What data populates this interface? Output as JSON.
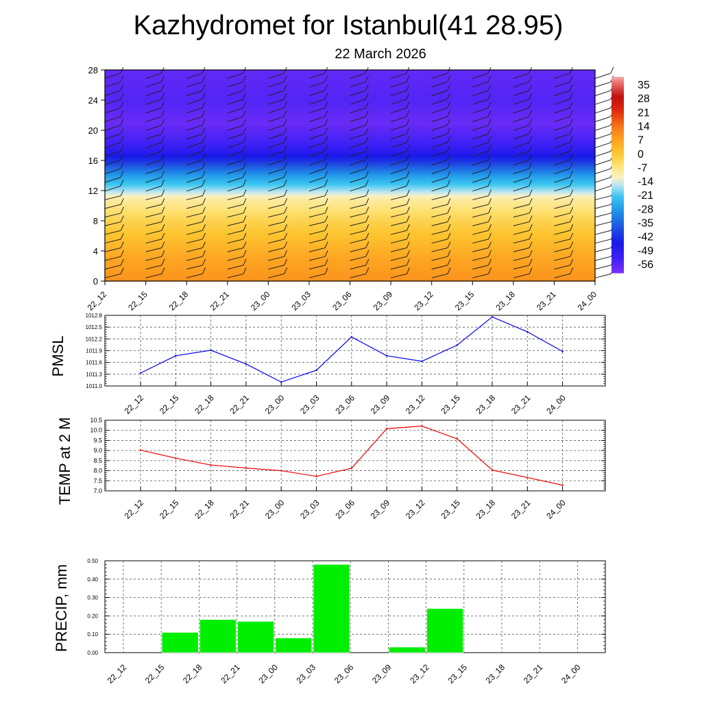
{
  "title": "Kazhydromet for Istanbul(41 28.95)",
  "subtitle": "22 March 2026",
  "colors": {
    "pmsl_line": "#0000ee",
    "temp_line": "#ee0000",
    "precip_bar": "#00ee00",
    "grid": "#555555"
  },
  "chart_data": [
    {
      "name": "vertical-profile",
      "type": "heatmap",
      "x_labels": [
        "22_12",
        "22_15",
        "22_18",
        "22_21",
        "23_00",
        "23_03",
        "23_06",
        "23_09",
        "23_12",
        "23_15",
        "23_18",
        "23_21",
        "24_00"
      ],
      "y_ticks": [
        "0",
        "4",
        "8",
        "12",
        "16",
        "20",
        "24",
        "28"
      ],
      "ylim": [
        0,
        28
      ],
      "colorbar_labels": [
        "35",
        "28",
        "21",
        "14",
        "7",
        "0",
        "-7",
        "-14",
        "-21",
        "-28",
        "-35",
        "-42",
        "-49",
        "-56"
      ],
      "colorbar_range": [
        -60,
        38
      ],
      "temperature_by_level": [
        {
          "level": 0,
          "value": 9
        },
        {
          "level": 3,
          "value": 6
        },
        {
          "level": 8,
          "value": -3
        },
        {
          "level": 11,
          "value": -10
        },
        {
          "level": 12,
          "value": -17
        },
        {
          "level": 14,
          "value": -28
        },
        {
          "level": 16,
          "value": -42
        },
        {
          "level": 18,
          "value": -52
        },
        {
          "level": 21,
          "value": -58
        },
        {
          "level": 24,
          "value": -55
        },
        {
          "level": 28,
          "value": -57
        }
      ],
      "legend": "right"
    },
    {
      "name": "pmsl",
      "type": "line",
      "ylabel": "PMSL",
      "x_labels": [
        "22_12",
        "22_15",
        "22_18",
        "22_21",
        "23_00",
        "23_03",
        "23_06",
        "23_09",
        "23_12",
        "23_15",
        "23_18",
        "23_21",
        "24_00"
      ],
      "values": [
        1011.33,
        1011.77,
        1011.91,
        1011.56,
        1011.1,
        1011.4,
        1012.25,
        1011.77,
        1011.63,
        1012.04,
        1012.76,
        1012.38,
        1011.88
      ],
      "ylim": [
        1011.0,
        1012.8
      ],
      "y_ticks": [
        "1011.0",
        "1011.3",
        "1011.6",
        "1011.9",
        "1012.2",
        "1012.5",
        "1012.8"
      ],
      "grid": true
    },
    {
      "name": "temp",
      "type": "line",
      "ylabel": "TEMP at 2 M",
      "x_labels": [
        "22_12",
        "22_15",
        "22_18",
        "22_21",
        "23_00",
        "23_03",
        "23_06",
        "23_09",
        "23_12",
        "23_15",
        "23_18",
        "23_21",
        "24_00"
      ],
      "values": [
        9.02,
        8.62,
        8.28,
        8.13,
        8.0,
        7.72,
        8.12,
        10.08,
        10.21,
        9.58,
        8.03,
        7.66,
        7.28
      ],
      "ylim": [
        7.0,
        10.5
      ],
      "y_ticks": [
        "7.0",
        "7.5",
        "8.0",
        "8.5",
        "9.0",
        "9.5",
        "10.0",
        "10.5"
      ],
      "grid": true
    },
    {
      "name": "precip",
      "type": "bar",
      "ylabel": "PRECIP, mm",
      "categories": [
        "22_12",
        "22_15",
        "22_18",
        "22_21",
        "23_00",
        "23_03",
        "23_06",
        "23_09",
        "23_12",
        "23_15",
        "23_18",
        "23_21",
        "24_00"
      ],
      "values": [
        0,
        0.11,
        0.18,
        0.17,
        0.08,
        0.48,
        0,
        0.03,
        0.24,
        0,
        0,
        0,
        0
      ],
      "ylim": [
        0,
        0.5
      ],
      "y_ticks": [
        "0.00",
        "0.10",
        "0.20",
        "0.30",
        "0.40",
        "0.50"
      ],
      "grid": true
    }
  ]
}
